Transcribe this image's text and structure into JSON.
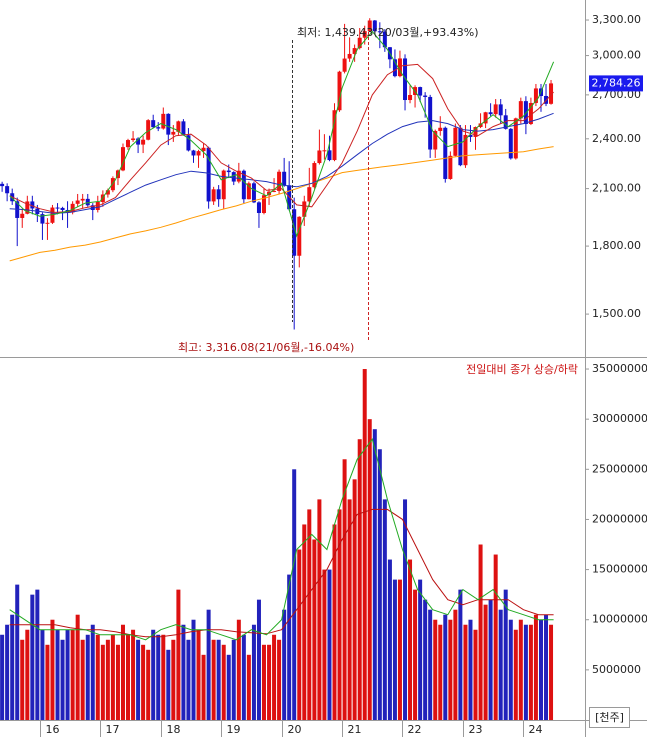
{
  "chart_data": [
    {
      "type": "candlestick",
      "log_scale": true,
      "xlim": [
        15.34,
        25.02
      ],
      "ylim": [
        1337,
        3482
      ],
      "yticks": [
        {
          "value": 1500,
          "label": "1,500.00"
        },
        {
          "value": 1800,
          "label": "1,800.00"
        },
        {
          "value": 2100,
          "label": "2,100.00"
        },
        {
          "value": 2400,
          "label": "2,400.00"
        },
        {
          "value": 2700,
          "label": "2,700.00"
        },
        {
          "value": 3000,
          "label": "3,000.00"
        },
        {
          "value": 3300,
          "label": "3,300.00"
        }
      ],
      "up_color": "#ee1111",
      "down_color": "#1111cc",
      "x": [
        15.375,
        15.458,
        15.542,
        15.625,
        15.708,
        15.792,
        15.875,
        15.958,
        16.042,
        16.125,
        16.208,
        16.292,
        16.375,
        16.458,
        16.542,
        16.625,
        16.708,
        16.792,
        16.875,
        16.958,
        17.042,
        17.125,
        17.208,
        17.292,
        17.375,
        17.458,
        17.542,
        17.625,
        17.708,
        17.792,
        17.875,
        17.958,
        18.042,
        18.125,
        18.208,
        18.292,
        18.375,
        18.458,
        18.542,
        18.625,
        18.708,
        18.792,
        18.875,
        18.958,
        19.042,
        19.125,
        19.208,
        19.292,
        19.375,
        19.458,
        19.542,
        19.625,
        19.708,
        19.792,
        19.875,
        19.958,
        20.042,
        20.125,
        20.208,
        20.292,
        20.375,
        20.458,
        20.542,
        20.625,
        20.708,
        20.792,
        20.875,
        20.958,
        21.042,
        21.125,
        21.208,
        21.292,
        21.375,
        21.458,
        21.542,
        21.625,
        21.708,
        21.792,
        21.875,
        21.958,
        22.042,
        22.125,
        22.208,
        22.292,
        22.375,
        22.458,
        22.542,
        22.625,
        22.708,
        22.792,
        22.875,
        22.958,
        23.042,
        23.125,
        23.208,
        23.292,
        23.375,
        23.458,
        23.542,
        23.625,
        23.708,
        23.792,
        23.875,
        23.958,
        24.042,
        24.125,
        24.208,
        24.292,
        24.375,
        24.458
      ],
      "open": [
        2127,
        2114,
        2074,
        2030,
        1941,
        1963,
        2029,
        1991,
        1961,
        1912,
        1916,
        1996,
        1994,
        1983,
        1970,
        2016,
        2034,
        2043,
        2008,
        1983,
        2026,
        2067,
        2091,
        2160,
        2205,
        2347,
        2392,
        2402,
        2363,
        2394,
        2523,
        2476,
        2467,
        2566,
        2427,
        2445,
        2515,
        2423,
        2326,
        2295,
        2322,
        2343,
        2029,
        2096,
        2041,
        2204,
        2195,
        2140,
        2203,
        2041,
        2130,
        2024,
        1967,
        2063,
        2083,
        2087,
        2197,
        2119,
        1987,
        1754,
        1947,
        2029,
        2108,
        2249,
        2326,
        2327,
        2267,
        2591,
        2873,
        2976,
        3013,
        3061,
        3147,
        3203,
        3296,
        3202,
        3199,
        3068,
        2970,
        2839,
        2977,
        2663,
        2699,
        2757,
        2695,
        2685,
        2332,
        2451,
        2472,
        2155,
        2293,
        2472,
        2236,
        2425,
        2412,
        2477,
        2501,
        2577,
        2564,
        2632,
        2556,
        2465,
        2277,
        2535,
        2655,
        2497,
        2642,
        2747,
        2692,
        2636
      ],
      "high": [
        2139,
        2130,
        2100,
        2050,
        1990,
        2060,
        2060,
        2010,
        1970,
        1940,
        2010,
        2020,
        2000,
        2030,
        2030,
        2070,
        2070,
        2070,
        2020,
        2060,
        2090,
        2100,
        2170,
        2210,
        2370,
        2400,
        2450,
        2410,
        2420,
        2530,
        2560,
        2510,
        2610,
        2570,
        2490,
        2520,
        2530,
        2470,
        2330,
        2330,
        2370,
        2350,
        2110,
        2120,
        2210,
        2240,
        2200,
        2250,
        2210,
        2140,
        2140,
        2030,
        2100,
        2100,
        2160,
        2210,
        2280,
        2260,
        2050,
        1950,
        2060,
        2220,
        2260,
        2460,
        2430,
        2420,
        2640,
        2880,
        3266,
        3150,
        3090,
        3230,
        3250,
        3316.08,
        3300,
        3280,
        3220,
        3070,
        3050,
        3040,
        3010,
        2770,
        2770,
        2760,
        2720,
        2700,
        2460,
        2550,
        2480,
        2320,
        2500,
        2490,
        2490,
        2490,
        2480,
        2570,
        2580,
        2640,
        2670,
        2670,
        2600,
        2470,
        2540,
        2680,
        2690,
        2680,
        2780,
        2780,
        2780,
        2810
      ],
      "low": [
        2082,
        2030,
        2010,
        1800,
        1890,
        1960,
        1960,
        1920,
        1830,
        1830,
        1910,
        1960,
        1930,
        1890,
        1960,
        2000,
        1990,
        2000,
        1930,
        1970,
        2000,
        2050,
        2080,
        2120,
        2200,
        2330,
        2380,
        2310,
        2310,
        2390,
        2470,
        2450,
        2460,
        2360,
        2380,
        2420,
        2420,
        2320,
        2250,
        2220,
        2280,
        1990,
        2010,
        2000,
        1990,
        2160,
        2120,
        2130,
        2020,
        2040,
        2020,
        1890,
        1960,
        2010,
        2080,
        2070,
        2110,
        1980,
        1439.43,
        1700,
        1900,
        2000,
        2100,
        2240,
        2270,
        2260,
        2260,
        2580,
        2860,
        2950,
        2950,
        3050,
        3090,
        3200,
        3190,
        3060,
        3030,
        2900,
        2830,
        2830,
        2590,
        2640,
        2610,
        2650,
        2540,
        2280,
        2280,
        2420,
        2134,
        2150,
        2290,
        2230,
        2220,
        2380,
        2330,
        2470,
        2470,
        2550,
        2540,
        2500,
        2460,
        2270,
        2270,
        2500,
        2430,
        2490,
        2620,
        2580,
        2620,
        2630
      ],
      "close": [
        2114,
        2074,
        2030,
        1941,
        1963,
        2029,
        1991,
        1961,
        1912,
        1916,
        1996,
        1994,
        1983,
        1970,
        2016,
        2034,
        2043,
        2008,
        1983,
        2026,
        2067,
        2091,
        2160,
        2205,
        2347,
        2392,
        2402,
        2363,
        2394,
        2523,
        2476,
        2467,
        2566,
        2427,
        2445,
        2515,
        2423,
        2326,
        2295,
        2322,
        2343,
        2029,
        2096,
        2041,
        2204,
        2195,
        2140,
        2203,
        2041,
        2130,
        2024,
        1967,
        2063,
        2083,
        2087,
        2197,
        2119,
        1987,
        1754,
        1947,
        2029,
        2108,
        2249,
        2326,
        2327,
        2267,
        2591,
        2873,
        2976,
        3013,
        3061,
        3147,
        3203,
        3296,
        3202,
        3199,
        3068,
        2970,
        2839,
        2977,
        2663,
        2699,
        2757,
        2695,
        2685,
        2332,
        2451,
        2472,
        2155,
        2293,
        2472,
        2236,
        2425,
        2412,
        2477,
        2501,
        2577,
        2564,
        2632,
        2556,
        2465,
        2277,
        2535,
        2655,
        2497,
        2642,
        2747,
        2692,
        2636,
        2784.26
      ],
      "moving_averages": {
        "x": [
          15.5,
          15.75,
          16,
          16.25,
          16.5,
          16.75,
          17,
          17.25,
          17.5,
          17.75,
          18,
          18.25,
          18.5,
          18.75,
          19,
          19.25,
          19.5,
          19.75,
          20,
          20.25,
          20.5,
          20.75,
          21,
          21.25,
          21.5,
          21.75,
          22,
          22.25,
          22.5,
          22.75,
          23,
          23.25,
          23.5,
          23.75,
          24,
          24.25,
          24.5
        ],
        "series": [
          {
            "color": "#ff9900",
            "values": [
              1730,
              1750,
              1770,
              1780,
              1795,
              1805,
              1820,
              1840,
              1860,
              1875,
              1893,
              1915,
              1940,
              1962,
              1985,
              2005,
              2030,
              2050,
              2073,
              2100,
              2130,
              2160,
              2192,
              2205,
              2218,
              2230,
              2241,
              2254,
              2267,
              2280,
              2293,
              2300,
              2306,
              2312,
              2318,
              2335,
              2350
            ]
          },
          {
            "color": "#2233bb",
            "values": [
              1990,
              1985,
              1975,
              1965,
              1970,
              1985,
              2000,
              2040,
              2080,
              2120,
              2150,
              2180,
              2200,
              2190,
              2170,
              2160,
              2150,
              2140,
              2120,
              2110,
              2130,
              2170,
              2230,
              2300,
              2370,
              2430,
              2480,
              2510,
              2520,
              2500,
              2460,
              2450,
              2460,
              2480,
              2500,
              2530,
              2570
            ]
          },
          {
            "color": "#cc2222",
            "values": [
              2060,
              2020,
              1990,
              1970,
              1975,
              1995,
              2010,
              2050,
              2150,
              2250,
              2360,
              2420,
              2430,
              2360,
              2250,
              2200,
              2160,
              2090,
              2100,
              2010,
              2000,
              2120,
              2250,
              2450,
              2700,
              2850,
              2920,
              2930,
              2820,
              2600,
              2450,
              2420,
              2480,
              2520,
              2520,
              2600,
              2720
            ]
          },
          {
            "color": "#22aa22",
            "values": [
              2060,
              1980,
              1950,
              1960,
              1980,
              2020,
              2030,
              2150,
              2350,
              2440,
              2500,
              2460,
              2390,
              2300,
              2150,
              2180,
              2100,
              2060,
              2130,
              1850,
              2050,
              2300,
              2750,
              3050,
              3200,
              3050,
              2850,
              2700,
              2450,
              2350,
              2380,
              2480,
              2560,
              2480,
              2550,
              2680,
              2950
            ]
          }
        ]
      },
      "last_price": {
        "value": 2784.26,
        "label": "2,784.26"
      },
      "annotations": [
        "최저: 1,439.43(20/03월,+93.43%)",
        "최고: 3,316.08(21/06월,-16.04%)"
      ]
    },
    {
      "type": "bar",
      "xlim": [
        15.34,
        25.02
      ],
      "xticks": [
        16,
        17,
        18,
        19,
        20,
        21,
        22,
        23,
        24
      ],
      "ylim": [
        0,
        35900000
      ],
      "yticks": [
        5000000,
        10000000,
        15000000,
        20000000,
        25000000,
        30000000,
        35000000
      ],
      "up_color": "#dd1111",
      "down_color": "#2222bb",
      "legend_text": "전일대비 종가 상승/하락",
      "unit": "[천주]",
      "x": [
        15.375,
        15.458,
        15.542,
        15.625,
        15.708,
        15.792,
        15.875,
        15.958,
        16.042,
        16.125,
        16.208,
        16.292,
        16.375,
        16.458,
        16.542,
        16.625,
        16.708,
        16.792,
        16.875,
        16.958,
        17.042,
        17.125,
        17.208,
        17.292,
        17.375,
        17.458,
        17.542,
        17.625,
        17.708,
        17.792,
        17.875,
        17.958,
        18.042,
        18.125,
        18.208,
        18.292,
        18.375,
        18.458,
        18.542,
        18.625,
        18.708,
        18.792,
        18.875,
        18.958,
        19.042,
        19.125,
        19.208,
        19.292,
        19.375,
        19.458,
        19.542,
        19.625,
        19.708,
        19.792,
        19.875,
        19.958,
        20.042,
        20.125,
        20.208,
        20.292,
        20.375,
        20.458,
        20.542,
        20.625,
        20.708,
        20.792,
        20.875,
        20.958,
        21.042,
        21.125,
        21.208,
        21.292,
        21.375,
        21.458,
        21.542,
        21.625,
        21.708,
        21.792,
        21.875,
        21.958,
        22.042,
        22.125,
        22.208,
        22.292,
        22.375,
        22.458,
        22.542,
        22.625,
        22.708,
        22.792,
        22.875,
        22.958,
        23.042,
        23.125,
        23.208,
        23.292,
        23.375,
        23.458,
        23.542,
        23.625,
        23.708,
        23.792,
        23.875,
        23.958,
        24.042,
        24.125,
        24.208,
        24.292,
        24.375,
        24.458
      ],
      "values": [
        8500000,
        9500000,
        10500000,
        13500000,
        8000000,
        9000000,
        12500000,
        13000000,
        9000000,
        7500000,
        10000000,
        9000000,
        8000000,
        9000000,
        9000000,
        10500000,
        8000000,
        8500000,
        9500000,
        8500000,
        7500000,
        8000000,
        8500000,
        7500000,
        9500000,
        8500000,
        9000000,
        8000000,
        7500000,
        7000000,
        9000000,
        8500000,
        8500000,
        7000000,
        8000000,
        13000000,
        9500000,
        8000000,
        10000000,
        9000000,
        6500000,
        11000000,
        8000000,
        8000000,
        7500000,
        6500000,
        8000000,
        10000000,
        8500000,
        6500000,
        9500000,
        12000000,
        7500000,
        7500000,
        8500000,
        8000000,
        11000000,
        14500000,
        25000000,
        17000000,
        19500000,
        21000000,
        18000000,
        22000000,
        15000000,
        15000000,
        19500000,
        21000000,
        26000000,
        22000000,
        24000000,
        28000000,
        35000000,
        30000000,
        29000000,
        27000000,
        22000000,
        16000000,
        14000000,
        14000000,
        22000000,
        16000000,
        13000000,
        14000000,
        12000000,
        11000000,
        10000000,
        9500000,
        10500000,
        10000000,
        11000000,
        13000000,
        9500000,
        10000000,
        9000000,
        17500000,
        11500000,
        12000000,
        16500000,
        11000000,
        13000000,
        10000000,
        9000000,
        10000000,
        9500000,
        9500000,
        10500000,
        10000000,
        10500000,
        9500000
      ],
      "moving_averages": {
        "x": [
          15.5,
          15.75,
          16,
          16.25,
          16.5,
          16.75,
          17,
          17.25,
          17.5,
          17.75,
          18,
          18.25,
          18.5,
          18.75,
          19,
          19.25,
          19.5,
          19.75,
          20,
          20.25,
          20.5,
          20.75,
          21,
          21.25,
          21.5,
          21.75,
          22,
          22.25,
          22.5,
          22.75,
          23,
          23.25,
          23.5,
          23.75,
          24,
          24.25,
          24.5
        ],
        "series": [
          {
            "color": "#bb1111",
            "values": [
              9500000,
              9500000,
              9500000,
              9500000,
              9200000,
              9000000,
              9000000,
              8800000,
              8500000,
              8300000,
              8300000,
              8500000,
              8800000,
              9000000,
              9000000,
              8800000,
              8700000,
              8600000,
              9000000,
              11000000,
              13000000,
              15000000,
              18000000,
              20500000,
              21000000,
              21000000,
              20000000,
              17000000,
              14000000,
              12000000,
              11500000,
              12000000,
              12000000,
              12000000,
              11000000,
              10500000,
              10500000
            ]
          },
          {
            "color": "#22aa22",
            "values": [
              11000000,
              10000000,
              9000000,
              9000000,
              9000000,
              9000000,
              8500000,
              8500000,
              8500000,
              8000000,
              9000000,
              9500000,
              9000000,
              9000000,
              8500000,
              8000000,
              9000000,
              8500000,
              10000000,
              17000000,
              18500000,
              17000000,
              22000000,
              26000000,
              28000000,
              22000000,
              17000000,
              13000000,
              11000000,
              10500000,
              13000000,
              12000000,
              13000000,
              11000000,
              10500000,
              10000000,
              10000000
            ]
          }
        ]
      }
    }
  ]
}
